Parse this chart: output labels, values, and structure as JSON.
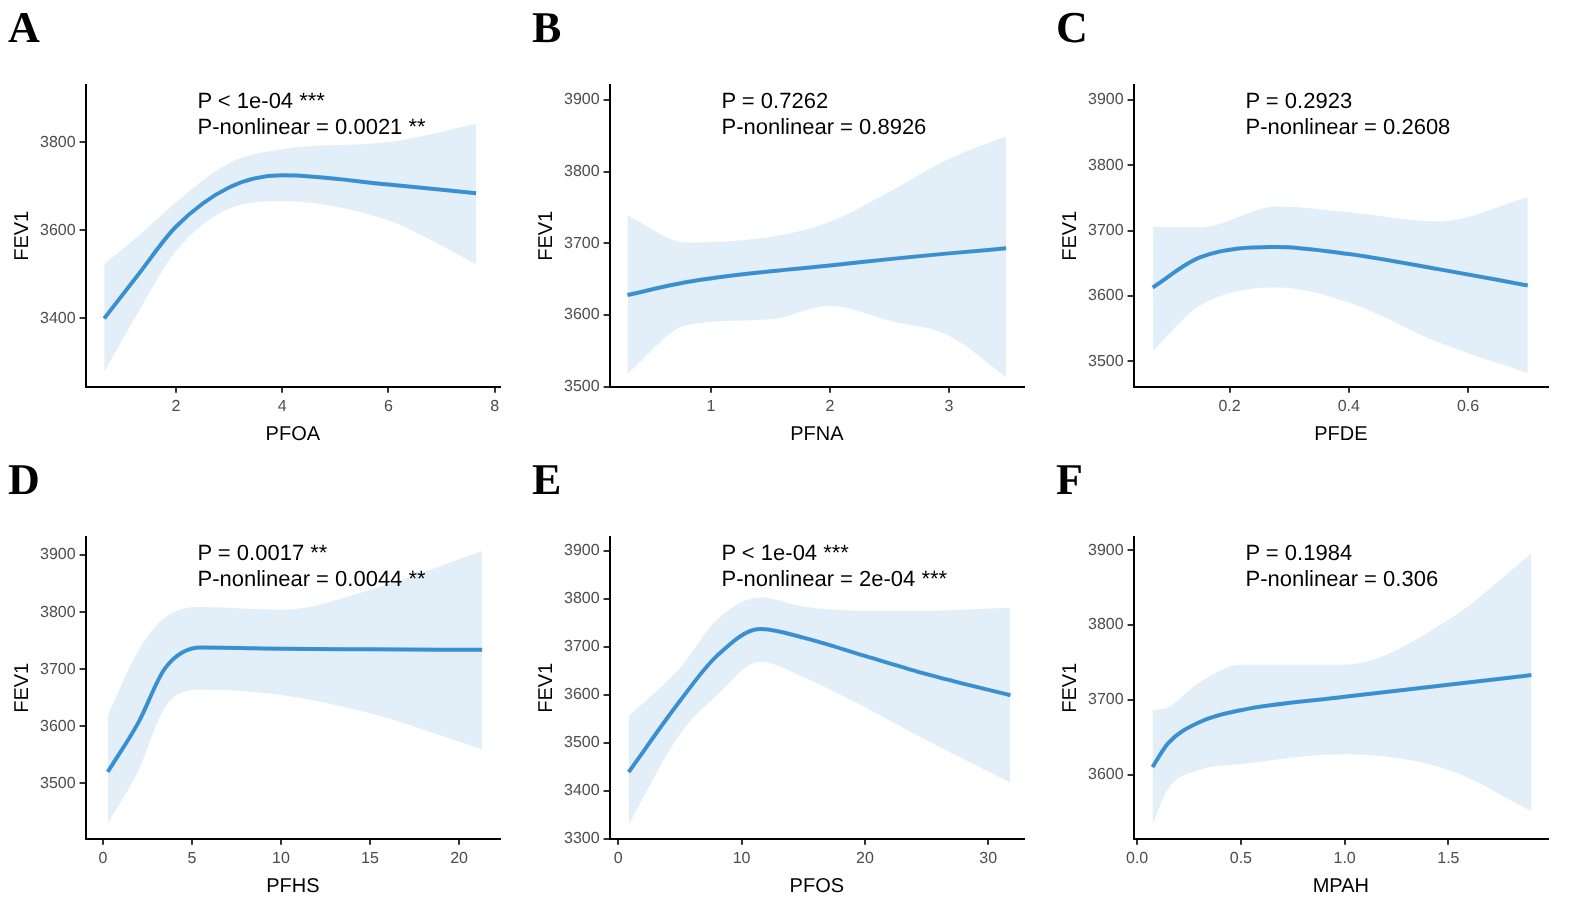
{
  "chart_data": [
    {
      "type": "line",
      "title": "A",
      "xlabel": "PFOA",
      "ylabel": "FEV1",
      "annotations": [
        "P < 1e-04 ***",
        "P-nonlinear = 0.0021 **"
      ],
      "xlim": [
        0.3,
        8.1
      ],
      "xticks": [
        2,
        4,
        6,
        8
      ],
      "ylim": [
        3245,
        3930
      ],
      "yticks": [
        3400,
        3600,
        3800
      ],
      "grid": false,
      "legend": false,
      "marker": "none",
      "line_style": "solid",
      "series": [
        {
          "color": "#3a8fd0",
          "x": [
            0.65,
            1.3,
            2,
            3,
            4,
            6,
            7.65
          ],
          "values": [
            3400,
            3501,
            3608,
            3697,
            3725,
            3704,
            3684
          ],
          "lower": [
            3279,
            3416,
            3553,
            3649,
            3666,
            3622,
            3523
          ],
          "upper": [
            3523,
            3588,
            3663,
            3752,
            3784,
            3800,
            3841
          ]
        }
      ]
    },
    {
      "type": "line",
      "title": "B",
      "xlabel": "PFNA",
      "ylabel": "FEV1",
      "annotations": [
        "P = 0.7262",
        "P-nonlinear = 0.8926"
      ],
      "xlim": [
        0.15,
        3.63
      ],
      "xticks": [
        1,
        2,
        3
      ],
      "ylim": [
        3500,
        3921
      ],
      "yticks": [
        3500,
        3600,
        3700,
        3800,
        3900
      ],
      "grid": false,
      "legend": false,
      "marker": "none",
      "line_style": "solid",
      "series": [
        {
          "color": "#3a8fd0",
          "x": [
            0.3,
            0.8,
            1.5,
            2,
            2.5,
            3,
            3.48
          ],
          "values": [
            3628,
            3646,
            3661,
            3669,
            3678,
            3686,
            3693
          ],
          "lower": [
            3518,
            3586,
            3594,
            3613,
            3592,
            3571,
            3513
          ],
          "upper": [
            3739,
            3701,
            3709,
            3730,
            3772,
            3818,
            3849
          ]
        }
      ]
    },
    {
      "type": "line",
      "title": "C",
      "xlabel": "PFDE",
      "ylabel": "FEV1",
      "annotations": [
        "P = 0.2923",
        "P-nonlinear = 0.2608"
      ],
      "xlim": [
        0.039,
        0.734
      ],
      "xticks": [
        0.2,
        0.4,
        0.6
      ],
      "ylim": [
        3461,
        3923
      ],
      "yticks": [
        3500,
        3600,
        3700,
        3800,
        3900
      ],
      "grid": false,
      "legend": false,
      "marker": "none",
      "line_style": "solid",
      "series": [
        {
          "color": "#3a8fd0",
          "x": [
            0.071,
            0.15,
            0.28,
            0.4,
            0.55,
            0.7
          ],
          "values": [
            3613,
            3659,
            3675,
            3664,
            3641,
            3616
          ],
          "lower": [
            3516,
            3585,
            3613,
            3590,
            3529,
            3482
          ],
          "upper": [
            3706,
            3705,
            3737,
            3728,
            3714,
            3751
          ]
        }
      ]
    },
    {
      "type": "line",
      "title": "D",
      "xlabel": "PFHS",
      "ylabel": "FEV1",
      "annotations": [
        "P = 0.0017 **",
        "P-nonlinear = 0.0044 **"
      ],
      "xlim": [
        -0.97,
        22.3
      ],
      "xticks": [
        0,
        5,
        10,
        15,
        20
      ],
      "ylim": [
        3403,
        3932
      ],
      "yticks": [
        3500,
        3600,
        3700,
        3800,
        3900
      ],
      "grid": false,
      "legend": false,
      "marker": "none",
      "line_style": "solid",
      "series": [
        {
          "color": "#3a8fd0",
          "x": [
            0.27,
            2,
            3.5,
            5.5,
            10,
            15,
            21.3
          ],
          "values": [
            3520,
            3607,
            3702,
            3738,
            3736,
            3735,
            3734
          ],
          "lower": [
            3429,
            3523,
            3634,
            3664,
            3655,
            3623,
            3560
          ],
          "upper": [
            3619,
            3733,
            3791,
            3809,
            3804,
            3839,
            3907
          ]
        }
      ]
    },
    {
      "type": "line",
      "title": "E",
      "xlabel": "PFOS",
      "ylabel": "FEV1",
      "annotations": [
        "P < 1e-04 ***",
        "P-nonlinear = 2e-04 ***"
      ],
      "xlim": [
        -0.7,
        32.9
      ],
      "xticks": [
        0,
        10,
        20,
        30
      ],
      "ylim": [
        3300,
        3929
      ],
      "yticks": [
        3300,
        3400,
        3500,
        3600,
        3700,
        3800,
        3900
      ],
      "grid": false,
      "legend": false,
      "marker": "none",
      "line_style": "solid",
      "series": [
        {
          "color": "#3a8fd0",
          "x": [
            0.85,
            5,
            8,
            11.5,
            15,
            20,
            25,
            31.8
          ],
          "values": [
            3439,
            3587,
            3681,
            3737,
            3719,
            3681,
            3643,
            3599
          ],
          "lower": [
            3330,
            3518,
            3599,
            3669,
            3637,
            3574,
            3505,
            3417
          ],
          "upper": [
            3556,
            3656,
            3756,
            3803,
            3784,
            3775,
            3775,
            3781
          ]
        }
      ]
    },
    {
      "type": "line",
      "title": "F",
      "xlabel": "MPAH",
      "ylabel": "FEV1",
      "annotations": [
        "P = 0.1984",
        "P-nonlinear = 0.306"
      ],
      "xlim": [
        -0.017,
        1.98
      ],
      "xticks": [
        {
          "value": 0,
          "label": "0.0"
        },
        0.5,
        {
          "value": 1,
          "label": "1.0"
        },
        1.5
      ],
      "ylim": [
        3514,
        3918
      ],
      "yticks": [
        3600,
        3700,
        3800,
        3900
      ],
      "grid": false,
      "legend": false,
      "marker": "none",
      "line_style": "solid",
      "series": [
        {
          "color": "#3a8fd0",
          "x": [
            0.074,
            0.15,
            0.3,
            0.5,
            1,
            1.5,
            1.9
          ],
          "values": [
            3610,
            3642,
            3670,
            3686,
            3704,
            3720,
            3733
          ],
          "lower": [
            3533,
            3581,
            3606,
            3614,
            3627,
            3606,
            3551
          ],
          "upper": [
            3686,
            3690,
            3723,
            3747,
            3747,
            3807,
            3896
          ]
        }
      ]
    }
  ]
}
